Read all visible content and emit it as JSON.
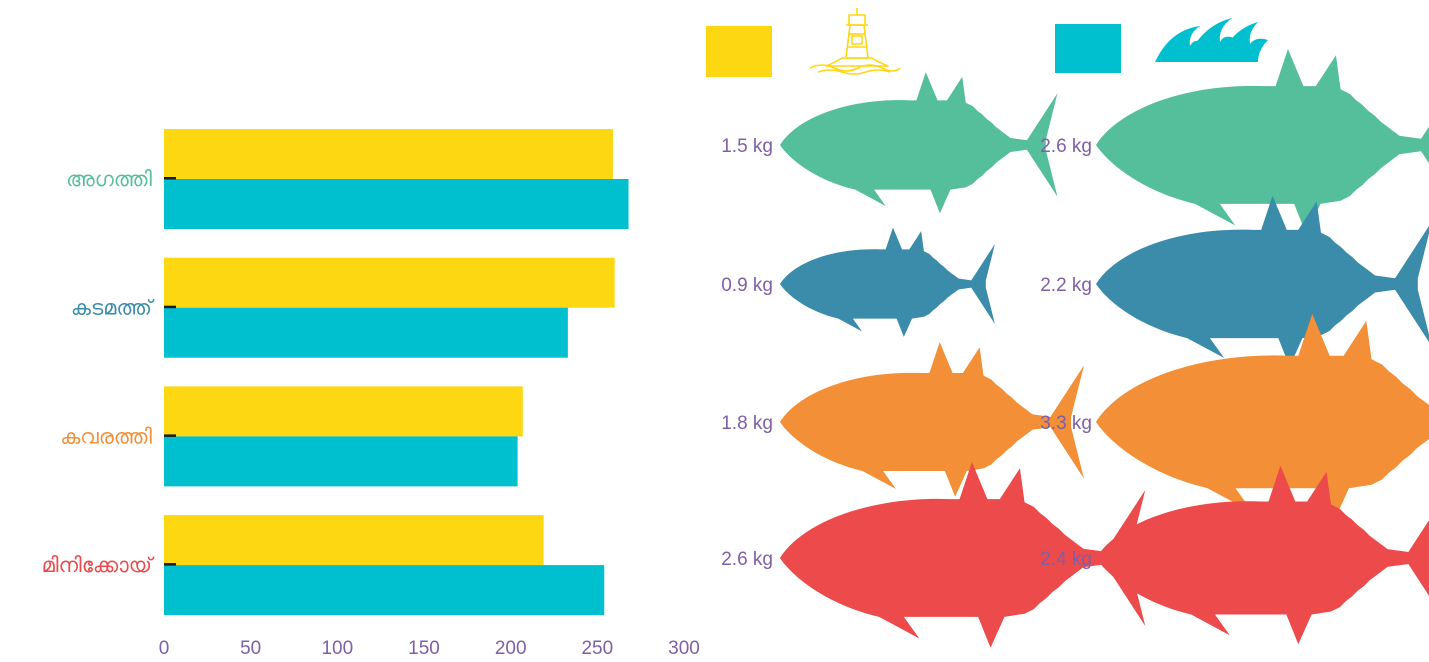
{
  "chart_data": {
    "type": "bar",
    "orientation": "horizontal",
    "categories": [
      "അഗത്തി",
      "കടമത്ത്",
      "കവരത്തി",
      "മിനിക്കോയ്"
    ],
    "category_colors": [
      "#55bf9c",
      "#3a8caa",
      "#f28f37",
      "#ec4a4b"
    ],
    "series": [
      {
        "legend_icon": "lighthouse-icon",
        "color": "#fdd711",
        "values": [
          259,
          260,
          207,
          219
        ]
      },
      {
        "legend_icon": "waves-icon",
        "color": "#00bfce",
        "values": [
          268,
          233,
          204,
          254
        ]
      }
    ],
    "xlim": [
      0,
      300
    ],
    "xticks": [
      "0",
      "50",
      "100",
      "150",
      "200",
      "250",
      "300"
    ],
    "grid": false,
    "legend_position": "top-right"
  },
  "fish_weights": {
    "series_1": [
      "1.5 kg",
      "0.9 kg",
      "1.8 kg",
      "2.6 kg"
    ],
    "series_2": [
      "2.6 kg",
      "2.2 kg",
      "3.3 kg",
      "2.4 kg"
    ],
    "series_1_values": [
      1.5,
      0.9,
      1.8,
      2.6
    ],
    "series_2_values": [
      2.6,
      2.2,
      3.3,
      2.4
    ]
  },
  "colors": {
    "axis_text": "#7f5fa8",
    "tick_mark": "#1a1a1a"
  }
}
